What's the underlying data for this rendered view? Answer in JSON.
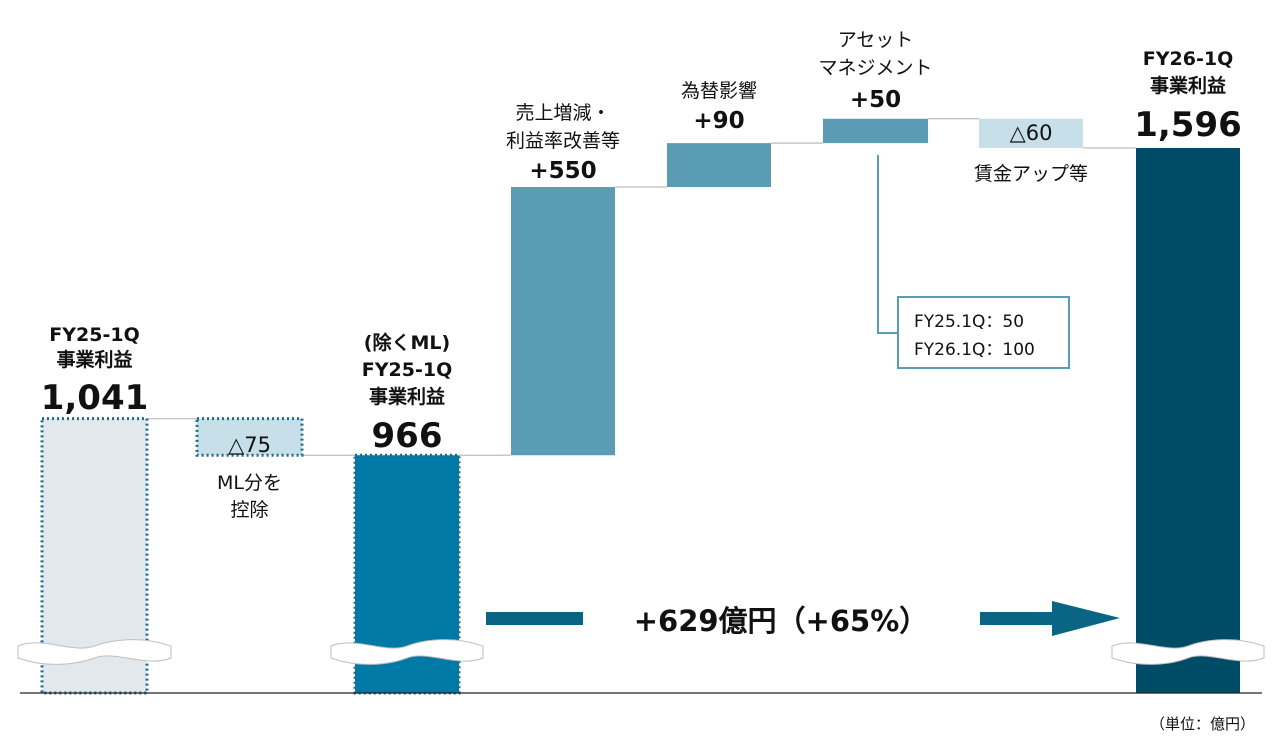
{
  "chart_data": {
    "type": "bar",
    "unit_note": "（単位：億円）",
    "bars": [
      {
        "id": "fy25",
        "kind": "total",
        "style": "dotted-pale",
        "label_lines": [
          "FY25-1Q",
          "事業利益"
        ],
        "value": 1041,
        "value_text": "1,041"
      },
      {
        "id": "ml",
        "kind": "delta",
        "style": "dotted-pale-small",
        "value": -75,
        "value_text": "△75",
        "caption_lines": [
          "ML分を",
          "控除"
        ]
      },
      {
        "id": "fy25_ex",
        "kind": "total",
        "style": "dotted-blue",
        "label_lines": [
          "(除くML)",
          "FY25-1Q",
          "事業利益"
        ],
        "value": 966,
        "value_text": "966"
      },
      {
        "id": "sales",
        "kind": "delta",
        "style": "mid",
        "label_lines": [
          "売上増減・",
          "利益率改善等"
        ],
        "value": 550,
        "value_text": "+550"
      },
      {
        "id": "fx",
        "kind": "delta",
        "style": "mid",
        "label_lines": [
          "為替影響"
        ],
        "value": 90,
        "value_text": "+90"
      },
      {
        "id": "am",
        "kind": "delta",
        "style": "mid",
        "label_lines": [
          "アセット",
          "マネジメント"
        ],
        "value": 50,
        "value_text": "+50"
      },
      {
        "id": "wage",
        "kind": "delta",
        "style": "pale",
        "value": -60,
        "value_text": "△60",
        "caption_lines": [
          "賃金アップ等"
        ]
      },
      {
        "id": "fy26",
        "kind": "total",
        "style": "dark",
        "label_lines": [
          "FY26-1Q",
          "事業利益"
        ],
        "value": 1596,
        "value_text": "1,596"
      }
    ],
    "callout": {
      "lines": [
        "FY25.1Q：50",
        "FY26.1Q：100"
      ]
    },
    "growth": {
      "text": "+629億円（+65%）"
    }
  },
  "colors": {
    "dark": "#004b66",
    "blue": "#0079a6",
    "mid": "#5b9cb5",
    "pale": "#c6dfe8",
    "grey": "#e2e8eb",
    "dot": "#1a6e8c",
    "connector": "#bdbdbd"
  }
}
